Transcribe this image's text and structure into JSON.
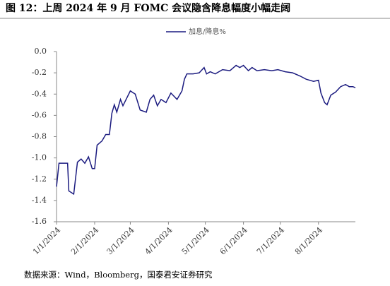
{
  "chart_data": {
    "type": "line",
    "title": "图 12：上周 2024 年 9 月 FOMC 会议隐含降息幅度小幅走阔",
    "source": "数据来源：Wind，Bloomberg，国泰君安证券研究",
    "x": [
      "2024-01-01",
      "2024-01-03",
      "2024-01-10",
      "2024-01-11",
      "2024-01-15",
      "2024-01-18",
      "2024-01-21",
      "2024-01-24",
      "2024-01-27",
      "2024-01-30",
      "2024-02-01",
      "2024-02-03",
      "2024-02-07",
      "2024-02-10",
      "2024-02-13",
      "2024-02-15",
      "2024-02-17",
      "2024-02-19",
      "2024-02-22",
      "2024-02-24",
      "2024-03-01",
      "2024-03-05",
      "2024-03-09",
      "2024-03-14",
      "2024-03-17",
      "2024-03-20",
      "2024-03-23",
      "2024-03-26",
      "2024-03-30",
      "2024-04-03",
      "2024-04-08",
      "2024-04-12",
      "2024-04-14",
      "2024-04-16",
      "2024-04-21",
      "2024-04-26",
      "2024-04-30",
      "2024-05-02",
      "2024-05-05",
      "2024-05-09",
      "2024-05-15",
      "2024-05-21",
      "2024-05-26",
      "2024-05-29",
      "2024-06-01",
      "2024-06-05",
      "2024-06-08",
      "2024-06-12",
      "2024-06-18",
      "2024-06-24",
      "2024-06-29",
      "2024-07-05",
      "2024-07-11",
      "2024-07-17",
      "2024-07-22",
      "2024-07-28",
      "2024-08-01",
      "2024-08-03",
      "2024-08-06",
      "2024-08-08",
      "2024-08-11",
      "2024-08-15",
      "2024-08-19",
      "2024-08-23",
      "2024-08-26",
      "2024-08-29",
      "2024-08-31"
    ],
    "series": [
      {
        "name": "加息/降息%",
        "color": "#1c1c80",
        "values": [
          -1.27,
          -1.05,
          -1.05,
          -1.31,
          -1.34,
          -1.04,
          -1.01,
          -1.05,
          -0.99,
          -1.1,
          -1.1,
          -0.88,
          -0.84,
          -0.78,
          -0.78,
          -0.58,
          -0.5,
          -0.57,
          -0.45,
          -0.51,
          -0.37,
          -0.4,
          -0.55,
          -0.57,
          -0.45,
          -0.41,
          -0.51,
          -0.45,
          -0.48,
          -0.39,
          -0.45,
          -0.37,
          -0.26,
          -0.21,
          -0.21,
          -0.2,
          -0.15,
          -0.21,
          -0.19,
          -0.21,
          -0.17,
          -0.18,
          -0.13,
          -0.15,
          -0.13,
          -0.18,
          -0.15,
          -0.18,
          -0.17,
          -0.18,
          -0.17,
          -0.19,
          -0.2,
          -0.23,
          -0.26,
          -0.28,
          -0.27,
          -0.39,
          -0.48,
          -0.5,
          -0.41,
          -0.38,
          -0.33,
          -0.31,
          -0.33,
          -0.33,
          -0.34
        ]
      }
    ],
    "xlim": [
      "2024-01-01",
      "2024-08-31"
    ],
    "xticks": [
      {
        "value": "2024-01-01",
        "label": "1/1/2024"
      },
      {
        "value": "2024-02-01",
        "label": "2/1/2024"
      },
      {
        "value": "2024-03-01",
        "label": "3/1/2024"
      },
      {
        "value": "2024-04-01",
        "label": "4/1/2024"
      },
      {
        "value": "2024-05-01",
        "label": "5/1/2024"
      },
      {
        "value": "2024-06-01",
        "label": "6/1/2024"
      },
      {
        "value": "2024-07-01",
        "label": "7/1/2024"
      },
      {
        "value": "2024-08-01",
        "label": "8/1/2024"
      }
    ],
    "ylim": [
      -1.6,
      0
    ],
    "yticks": [
      {
        "value": 0,
        "label": "0.0"
      },
      -0.2,
      -0.4,
      -0.6,
      -0.8,
      {
        "value": -1,
        "label": "-1.0"
      },
      -1.2,
      -1.4,
      -1.6
    ],
    "legend": "top"
  }
}
